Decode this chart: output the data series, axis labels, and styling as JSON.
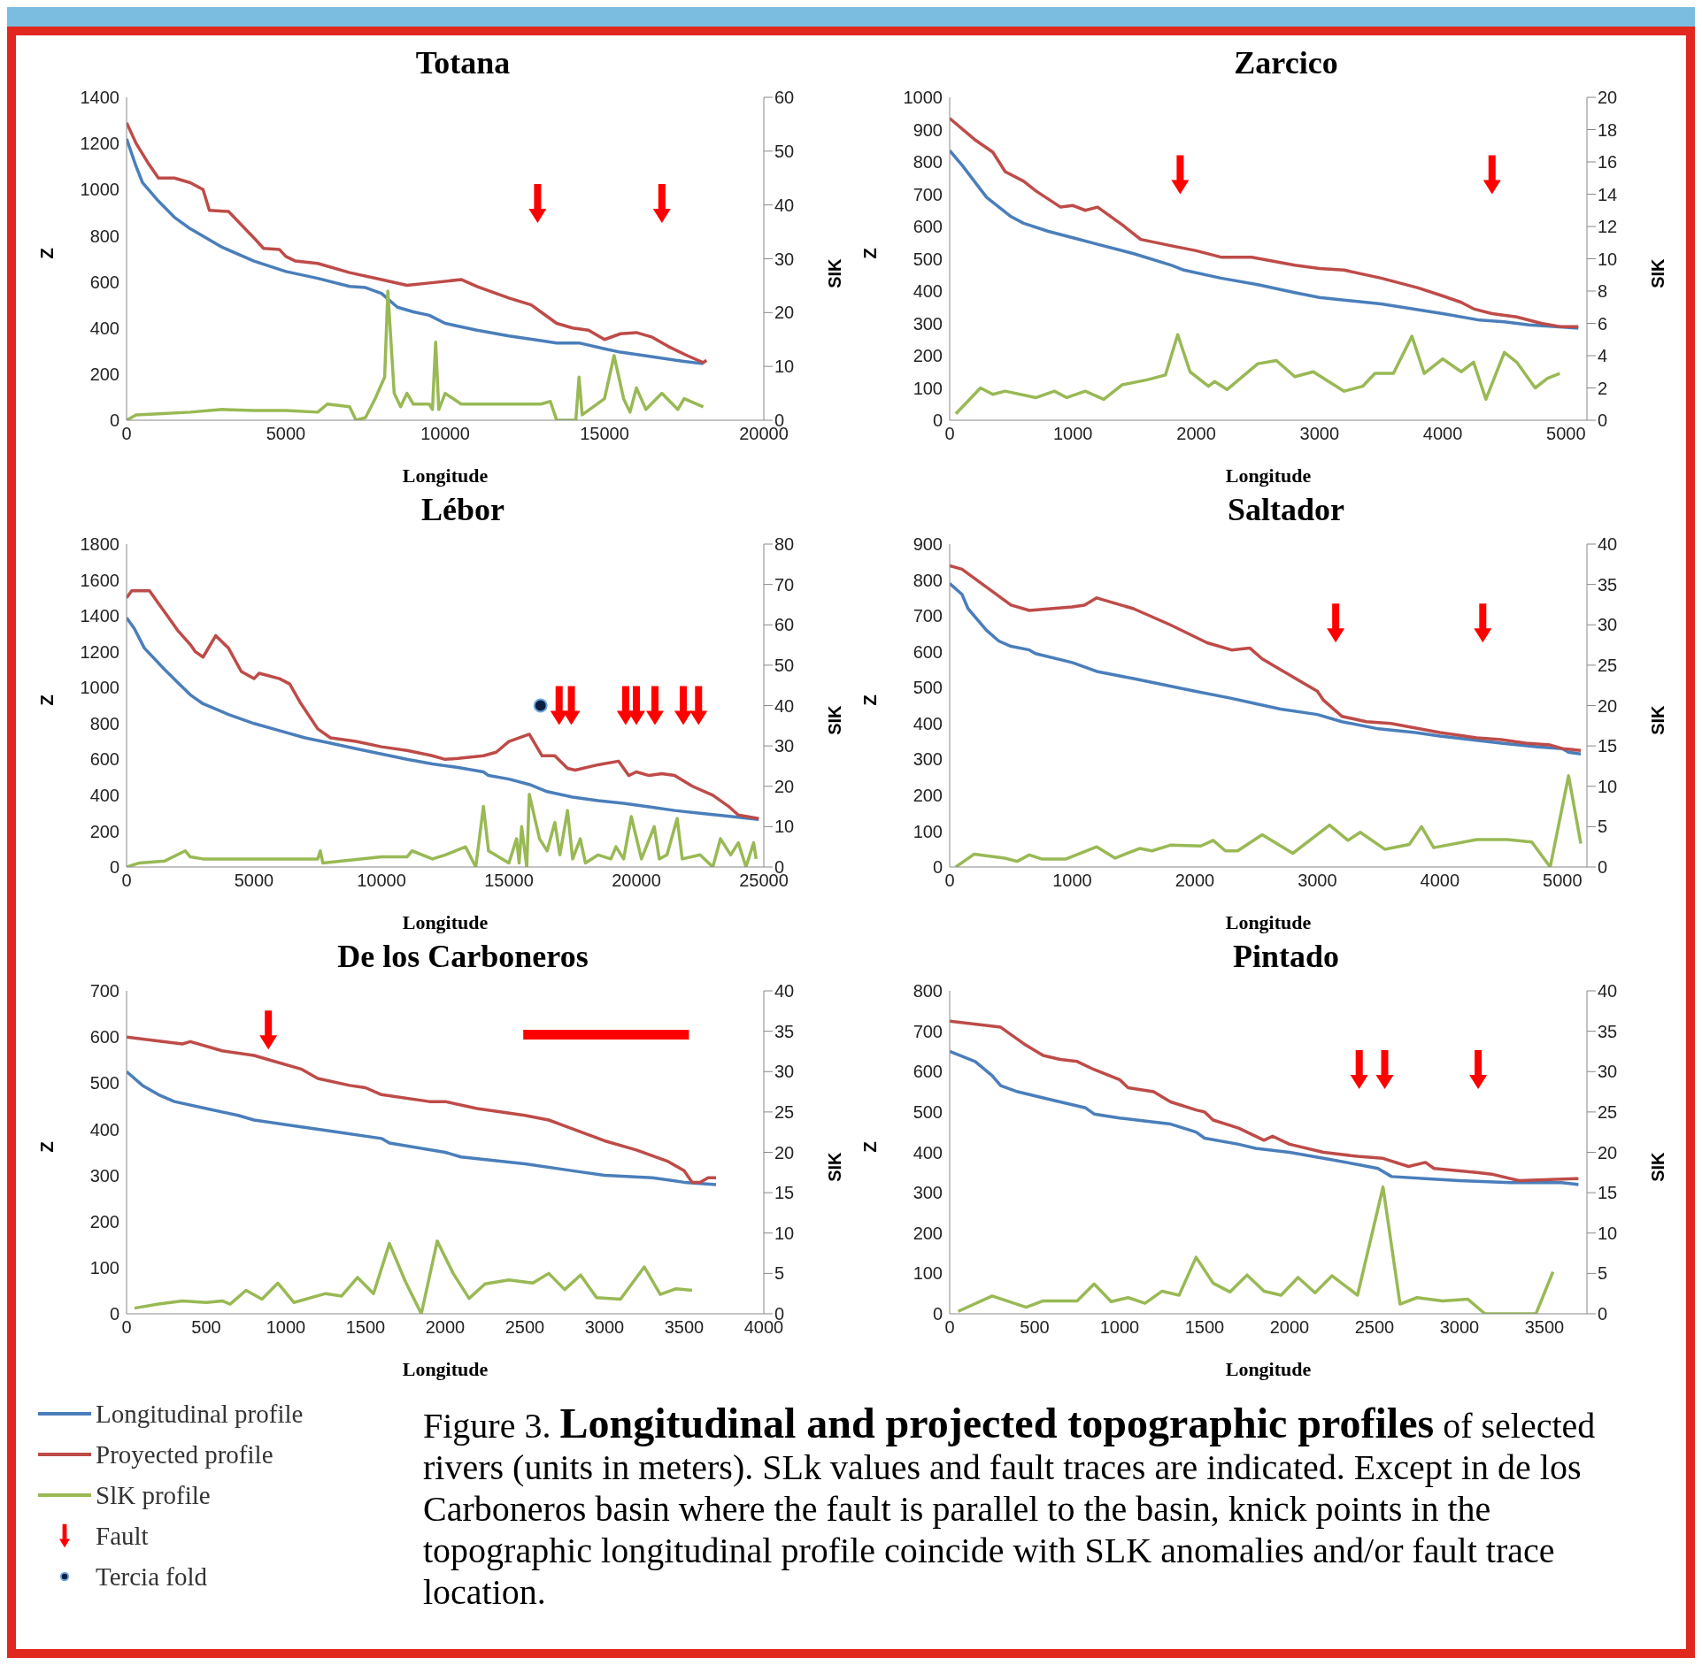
{
  "chart_data": [
    {
      "type": "line",
      "title": "Totana",
      "legend": "bottom left",
      "xlabel": "Longitude",
      "ylabel": "Z",
      "y2label": "SIK",
      "xlim": [
        0,
        20000
      ],
      "xticks": [
        0,
        5000,
        10000,
        15000,
        20000
      ],
      "ylim": [
        0,
        1400
      ],
      "yticks": [
        0,
        200,
        400,
        600,
        800,
        1000,
        1200,
        1400
      ],
      "y2lim": [
        0,
        60
      ],
      "y2ticks": [
        0,
        10,
        20,
        30,
        40,
        50,
        60
      ],
      "series": [
        {
          "name": "Longitudinal profile",
          "color": "#4a7ebb",
          "x": [
            0,
            300,
            500,
            1000,
            1500,
            2000,
            2500,
            3000,
            4000,
            5000,
            6000,
            7000,
            7500,
            8000,
            8500,
            9000,
            9500,
            10000,
            11000,
            12000,
            13000,
            13500,
            14200,
            15000,
            15500,
            16500,
            17500,
            18100
          ],
          "values": [
            1220,
            1100,
            1030,
            950,
            880,
            830,
            790,
            750,
            690,
            645,
            615,
            580,
            575,
            550,
            490,
            470,
            455,
            420,
            390,
            365,
            345,
            335,
            335,
            310,
            295,
            275,
            255,
            245
          ]
        },
        {
          "name": "Proyected profile",
          "color": "#be4b48",
          "x": [
            0,
            300,
            700,
            1000,
            1500,
            2000,
            2400,
            2600,
            3200,
            4000,
            4300,
            4800,
            5000,
            5300,
            6000,
            7000,
            8000,
            8800,
            9500,
            10500,
            11000,
            12000,
            12700,
            13000,
            13500,
            14000,
            14500,
            15000,
            15500,
            16000,
            16500,
            17000,
            17600,
            18100,
            18200
          ],
          "values": [
            1290,
            1200,
            1110,
            1050,
            1050,
            1030,
            1000,
            910,
            905,
            790,
            745,
            740,
            710,
            690,
            680,
            640,
            610,
            585,
            595,
            610,
            580,
            530,
            500,
            470,
            420,
            400,
            390,
            350,
            375,
            380,
            360,
            320,
            280,
            250,
            260
          ]
        },
        {
          "name": "SlK profile",
          "color": "#98b954",
          "axis": "y2",
          "x": [
            0,
            300,
            1000,
            2000,
            3000,
            4000,
            5000,
            6000,
            6300,
            7000,
            7200,
            7500,
            7800,
            8100,
            8200,
            8400,
            8600,
            8800,
            9000,
            9500,
            9600,
            9700,
            9800,
            10000,
            10500,
            11000,
            12000,
            13000,
            13300,
            13500,
            14100,
            14200,
            14300,
            15000,
            15300,
            15600,
            15800,
            16000,
            16300,
            16800,
            17300,
            17500,
            18100
          ],
          "values": [
            0,
            1,
            1.2,
            1.5,
            2,
            1.8,
            1.8,
            1.5,
            3,
            2.5,
            0,
            0.5,
            4,
            8,
            24,
            5,
            2.5,
            5,
            3,
            3,
            2,
            14.5,
            2,
            5,
            3,
            3,
            3,
            3,
            3.5,
            0,
            0,
            8,
            1,
            4,
            12,
            4,
            1.5,
            6,
            2,
            5,
            2,
            4,
            2.5
          ]
        },
        {
          "name": "Fault",
          "type": "scatter",
          "color": "#ff0000",
          "x": [
            12900,
            16800
          ],
          "values": [
            940,
            940
          ]
        }
      ]
    },
    {
      "type": "line",
      "title": "Zarcico",
      "xlabel": "Longitude",
      "ylabel": "Z",
      "y2label": "SIK",
      "xlim": [
        0,
        5170
      ],
      "xticks": [
        0,
        1000,
        2000,
        3000,
        4000,
        5000
      ],
      "ylim": [
        0,
        1000
      ],
      "yticks": [
        0,
        100,
        200,
        300,
        400,
        500,
        600,
        700,
        800,
        900,
        1000
      ],
      "y2lim": [
        0,
        20
      ],
      "y2ticks": [
        0,
        2,
        4,
        6,
        8,
        10,
        12,
        14,
        16,
        18,
        20
      ],
      "series": [
        {
          "name": "Longitudinal profile",
          "color": "#4a7ebb",
          "x": [
            0,
            100,
            200,
            300,
            400,
            500,
            600,
            800,
            1000,
            1200,
            1500,
            1800,
            1900,
            2200,
            2500,
            2800,
            3000,
            3500,
            4000,
            4300,
            4500,
            4700,
            5000,
            5100
          ],
          "values": [
            835,
            790,
            740,
            690,
            660,
            630,
            610,
            585,
            565,
            545,
            515,
            480,
            465,
            440,
            420,
            395,
            380,
            360,
            330,
            310,
            305,
            295,
            288,
            285
          ]
        },
        {
          "name": "Proyected profile",
          "color": "#be4b48",
          "x": [
            0,
            200,
            350,
            450,
            600,
            700,
            900,
            1000,
            1100,
            1200,
            1400,
            1550,
            1800,
            2000,
            2200,
            2450,
            2800,
            3000,
            3200,
            3500,
            3800,
            4000,
            4150,
            4250,
            4400,
            4600,
            4800,
            4950,
            5100
          ],
          "values": [
            935,
            870,
            830,
            770,
            740,
            710,
            660,
            665,
            650,
            660,
            605,
            560,
            540,
            525,
            505,
            505,
            480,
            470,
            465,
            440,
            410,
            385,
            365,
            345,
            330,
            320,
            300,
            290,
            290
          ]
        },
        {
          "name": "SlK profile",
          "color": "#98b954",
          "axis": "y2",
          "x": [
            50,
            250,
            350,
            450,
            700,
            850,
            950,
            1100,
            1250,
            1400,
            1600,
            1750,
            1850,
            1950,
            2100,
            2150,
            2250,
            2500,
            2650,
            2800,
            2950,
            3200,
            3350,
            3450,
            3600,
            3750,
            3850,
            4000,
            4150,
            4250,
            4350,
            4500,
            4600,
            4750,
            4850,
            4950
          ],
          "values": [
            0.4,
            2,
            1.6,
            1.8,
            1.4,
            1.8,
            1.4,
            1.8,
            1.3,
            2.2,
            2.5,
            2.8,
            5.3,
            3,
            2.1,
            2.4,
            1.9,
            3.5,
            3.7,
            2.7,
            3,
            1.8,
            2.1,
            2.9,
            2.9,
            5.2,
            2.9,
            3.8,
            3,
            3.6,
            1.3,
            4.2,
            3.6,
            2,
            2.6,
            2.9
          ]
        },
        {
          "name": "Fault",
          "type": "scatter",
          "color": "#ff0000",
          "x": [
            1870,
            4400
          ],
          "values": [
            760,
            760
          ]
        }
      ]
    },
    {
      "type": "line",
      "title": "Lébor",
      "xlabel": "Longitude",
      "ylabel": "Z",
      "y2label": "SIK",
      "xlim": [
        0,
        25000
      ],
      "xticks": [
        0,
        5000,
        10000,
        15000,
        20000,
        25000
      ],
      "ylim": [
        0,
        1800
      ],
      "yticks": [
        0,
        200,
        400,
        600,
        800,
        1000,
        1200,
        1400,
        1600,
        1800
      ],
      "y2lim": [
        0,
        80
      ],
      "y2ticks": [
        0,
        10,
        20,
        30,
        40,
        50,
        60,
        70,
        80
      ],
      "series": [
        {
          "name": "Longitudinal profile",
          "color": "#4a7ebb",
          "x": [
            0,
            300,
            700,
            1500,
            2000,
            2500,
            3000,
            4000,
            5000,
            6000,
            7000,
            8000,
            9000,
            10000,
            11000,
            12000,
            13000,
            14000,
            14200,
            15000,
            15800,
            16500,
            17500,
            18500,
            19500,
            20500,
            21500,
            22500,
            23500,
            24800
          ],
          "values": [
            1390,
            1330,
            1220,
            1100,
            1030,
            960,
            910,
            850,
            800,
            760,
            720,
            690,
            660,
            630,
            600,
            575,
            555,
            530,
            510,
            490,
            460,
            420,
            390,
            370,
            355,
            335,
            315,
            300,
            285,
            265
          ]
        },
        {
          "name": "Proyected profile",
          "color": "#be4b48",
          "x": [
            0,
            200,
            900,
            1200,
            1500,
            2000,
            2500,
            2700,
            3000,
            3500,
            4000,
            4500,
            5000,
            5200,
            6000,
            6400,
            6800,
            7500,
            8000,
            9000,
            10000,
            11000,
            12000,
            12500,
            13000,
            14000,
            14500,
            15000,
            15800,
            16300,
            16800,
            17300,
            17600,
            18500,
            19300,
            19700,
            20000,
            20500,
            21000,
            21500,
            22200,
            23000,
            23600,
            24000,
            24800
          ],
          "values": [
            1500,
            1540,
            1540,
            1480,
            1420,
            1320,
            1240,
            1200,
            1170,
            1290,
            1220,
            1090,
            1050,
            1080,
            1050,
            1020,
            920,
            770,
            720,
            700,
            670,
            650,
            620,
            600,
            605,
            620,
            640,
            700,
            740,
            620,
            620,
            550,
            540,
            570,
            590,
            510,
            530,
            510,
            520,
            510,
            450,
            400,
            340,
            290,
            270
          ]
        },
        {
          "name": "SlK profile",
          "color": "#98b954",
          "axis": "y2",
          "x": [
            0,
            500,
            1500,
            2300,
            2500,
            3000,
            5000,
            7500,
            7600,
            7700,
            10000,
            11000,
            11200,
            12000,
            12500,
            13300,
            13700,
            14000,
            14200,
            15000,
            15300,
            15400,
            15500,
            15700,
            15800,
            16200,
            16500,
            16800,
            17000,
            17300,
            17500,
            17800,
            18000,
            18500,
            19000,
            19200,
            19500,
            19800,
            20200,
            20700,
            20900,
            21200,
            21600,
            21800,
            22500,
            23000,
            23300,
            23700,
            24000,
            24300,
            24600,
            24700
          ],
          "values": [
            0,
            1,
            1.5,
            4,
            2.5,
            2,
            2,
            2,
            4,
            1,
            2.5,
            2.5,
            4,
            2,
            3,
            5,
            0,
            15,
            4,
            1,
            7,
            1,
            10,
            0,
            18,
            7,
            4,
            11,
            3,
            14,
            2,
            7,
            1,
            3,
            2,
            5,
            2,
            12.5,
            2,
            10,
            2,
            3,
            12,
            2,
            3,
            0,
            7,
            3,
            6,
            0,
            6,
            2
          ]
        },
        {
          "name": "Fault",
          "type": "scatter",
          "color": "#ff0000",
          "x": [
            16970,
            17450,
            19580,
            20000,
            20730,
            21840,
            22440
          ],
          "values": [
            900,
            900,
            900,
            900,
            900,
            900,
            900
          ]
        },
        {
          "name": "Tercia fold",
          "type": "scatter",
          "marker": "circle",
          "color": "#0a1f44",
          "x": [
            16240
          ],
          "values": [
            900
          ]
        }
      ]
    },
    {
      "type": "line",
      "title": "Saltador",
      "xlabel": "Longitude",
      "ylabel": "Z",
      "y2label": "SIK",
      "xlim": [
        0,
        5200
      ],
      "xticks": [
        0,
        1000,
        2000,
        3000,
        4000,
        5000
      ],
      "ylim": [
        0,
        900
      ],
      "yticks": [
        0,
        100,
        200,
        300,
        400,
        500,
        600,
        700,
        800,
        900
      ],
      "y2lim": [
        0,
        40
      ],
      "y2ticks": [
        0,
        5,
        10,
        15,
        20,
        25,
        30,
        35,
        40
      ],
      "series": [
        {
          "name": "Longitudinal profile",
          "color": "#4a7ebb",
          "x": [
            0,
            100,
            150,
            300,
            400,
            500,
            650,
            700,
            1000,
            1200,
            1500,
            2000,
            2300,
            2500,
            2700,
            3000,
            3200,
            3500,
            3800,
            4000,
            4500,
            4800,
            5000,
            5050,
            5150
          ],
          "values": [
            790,
            760,
            720,
            660,
            630,
            615,
            605,
            595,
            570,
            545,
            525,
            490,
            470,
            455,
            440,
            425,
            405,
            385,
            375,
            365,
            345,
            335,
            330,
            320,
            315
          ]
        },
        {
          "name": "Proyected profile",
          "color": "#be4b48",
          "x": [
            0,
            100,
            300,
            500,
            650,
            1000,
            1100,
            1200,
            1500,
            1800,
            2100,
            2300,
            2450,
            2550,
            2700,
            2900,
            3000,
            3050,
            3200,
            3400,
            3600,
            4000,
            4300,
            4500,
            4700,
            4900,
            5000,
            5150
          ],
          "values": [
            840,
            830,
            780,
            730,
            715,
            725,
            730,
            750,
            720,
            675,
            625,
            605,
            610,
            580,
            550,
            510,
            490,
            465,
            420,
            405,
            400,
            375,
            360,
            355,
            345,
            340,
            330,
            325
          ]
        },
        {
          "name": "SlK profile",
          "color": "#98b954",
          "axis": "y2",
          "x": [
            50,
            200,
            450,
            550,
            650,
            750,
            950,
            1200,
            1350,
            1550,
            1650,
            1800,
            2050,
            2150,
            2250,
            2350,
            2550,
            2800,
            3100,
            3250,
            3350,
            3550,
            3750,
            3850,
            3950,
            4300,
            4550,
            4750,
            4900,
            5050,
            5150
          ],
          "values": [
            0,
            1.6,
            1.1,
            0.7,
            1.5,
            1,
            1,
            2.5,
            1.1,
            2.3,
            2,
            2.7,
            2.6,
            3.3,
            2,
            2,
            4,
            1.7,
            5.2,
            3.3,
            4.3,
            2.2,
            2.8,
            5,
            2.4,
            3.4,
            3.4,
            3.1,
            0,
            11.3,
            2.9
          ]
        },
        {
          "name": "Fault",
          "type": "scatter",
          "color": "#ff0000",
          "x": [
            3150,
            4350
          ],
          "values": [
            680,
            680
          ]
        }
      ]
    },
    {
      "type": "line",
      "title": "De los Carboneros",
      "xlabel": "Longitude",
      "ylabel": "Z",
      "y2label": "SIK",
      "xlim": [
        0,
        4000
      ],
      "xticks": [
        0,
        500,
        1000,
        1500,
        2000,
        2500,
        3000,
        3500,
        4000
      ],
      "ylim": [
        0,
        700
      ],
      "yticks": [
        0,
        100,
        200,
        300,
        400,
        500,
        600,
        700
      ],
      "y2lim": [
        0,
        40
      ],
      "y2ticks": [
        0,
        5,
        10,
        15,
        20,
        25,
        30,
        35,
        40
      ],
      "series": [
        {
          "name": "Longitudinal profile",
          "color": "#4a7ebb",
          "x": [
            0,
            100,
            200,
            300,
            500,
            700,
            800,
            1000,
            1300,
            1600,
            1650,
            2000,
            2100,
            2500,
            2800,
            3000,
            3300,
            3500,
            3700
          ],
          "values": [
            525,
            495,
            475,
            460,
            445,
            430,
            420,
            410,
            395,
            380,
            370,
            350,
            340,
            325,
            310,
            300,
            295,
            285,
            280
          ]
        },
        {
          "name": "Proyected profile",
          "color": "#be4b48",
          "x": [
            0,
            350,
            400,
            600,
            800,
            900,
            1100,
            1200,
            1400,
            1500,
            1600,
            1900,
            2000,
            2200,
            2500,
            2650,
            3000,
            3200,
            3400,
            3500,
            3550,
            3600,
            3650,
            3700
          ],
          "values": [
            600,
            585,
            590,
            570,
            560,
            550,
            530,
            510,
            495,
            490,
            475,
            460,
            460,
            445,
            430,
            420,
            375,
            355,
            330,
            310,
            285,
            285,
            295,
            295
          ]
        },
        {
          "name": "SlK profile",
          "color": "#98b954",
          "axis": "y2",
          "x": [
            50,
            200,
            350,
            500,
            600,
            650,
            750,
            850,
            950,
            1050,
            1250,
            1350,
            1450,
            1550,
            1650,
            1750,
            1850,
            1950,
            2050,
            2150,
            2250,
            2400,
            2550,
            2650,
            2750,
            2850,
            2950,
            3100,
            3250,
            3350,
            3450,
            3550
          ],
          "values": [
            0.7,
            1.2,
            1.6,
            1.4,
            1.6,
            1.2,
            2.9,
            1.8,
            3.8,
            1.4,
            2.5,
            2.2,
            4.5,
            2.5,
            8.7,
            4,
            0,
            9,
            5,
            1.9,
            3.7,
            4.2,
            3.8,
            5,
            3,
            4.8,
            2,
            1.8,
            5.8,
            2.4,
            3.1,
            2.9
          ]
        },
        {
          "type": "line",
          "color": "#ff0000",
          "x": [
            2490,
            3530
          ],
          "values": [
            605,
            605
          ]
        },
        {
          "name": "Fault",
          "type": "scatter",
          "color": "#ff0000",
          "x": [
            890
          ],
          "values": [
            615
          ]
        }
      ]
    },
    {
      "type": "line",
      "title": "Pintado",
      "xlabel": "Longitude",
      "ylabel": "Z",
      "y2label": "SIK",
      "xlim": [
        0,
        3750
      ],
      "xticks": [
        0,
        500,
        1000,
        1500,
        2000,
        2500,
        3000,
        3500
      ],
      "ylim": [
        0,
        800
      ],
      "yticks": [
        0,
        100,
        200,
        300,
        400,
        500,
        600,
        700,
        800
      ],
      "y2lim": [
        0,
        40
      ],
      "y2ticks": [
        0,
        5,
        10,
        15,
        20,
        25,
        30,
        35,
        40
      ],
      "annotations": [
        "Figure 3. ",
        "Longitudinal and projected topographic profiles",
        " of selected rivers (units in meters). SLk values and fault traces are indicated. Except in de los Carboneros basin where the fault is parallel to the basin, knick points in the topographic longitudinal profile coincide with SLK anomalies and/or fault trace location."
      ],
      "series": [
        {
          "name": "Longitudinal profile",
          "color": "#4a7ebb",
          "x": [
            0,
            150,
            250,
            300,
            400,
            600,
            800,
            850,
            1000,
            1100,
            1300,
            1450,
            1500,
            1700,
            1800,
            2000,
            2200,
            2400,
            2520,
            2600,
            2800,
            3000,
            3300,
            3600,
            3700
          ],
          "values": [
            650,
            625,
            590,
            565,
            550,
            530,
            510,
            495,
            485,
            480,
            470,
            450,
            435,
            420,
            410,
            400,
            385,
            370,
            360,
            340,
            335,
            330,
            325,
            325,
            320
          ]
        },
        {
          "name": "Proyected profile",
          "color": "#be4b48",
          "x": [
            0,
            300,
            450,
            550,
            650,
            750,
            850,
            1000,
            1050,
            1200,
            1300,
            1450,
            1500,
            1550,
            1700,
            1850,
            1900,
            2000,
            2200,
            2400,
            2550,
            2700,
            2800,
            2850,
            3100,
            3200,
            3350,
            3700
          ],
          "values": [
            725,
            710,
            665,
            640,
            630,
            625,
            605,
            580,
            560,
            550,
            525,
            505,
            500,
            480,
            460,
            430,
            440,
            420,
            400,
            390,
            385,
            365,
            375,
            360,
            350,
            345,
            330,
            335
          ]
        },
        {
          "name": "SlK profile",
          "color": "#98b954",
          "axis": "y2",
          "x": [
            50,
            250,
            450,
            550,
            750,
            850,
            950,
            1050,
            1150,
            1250,
            1350,
            1450,
            1550,
            1650,
            1750,
            1850,
            1950,
            2050,
            2150,
            2250,
            2400,
            2550,
            2650,
            2750,
            2900,
            3050,
            3150,
            3350,
            3450,
            3550
          ],
          "values": [
            0.3,
            2.2,
            0.8,
            1.6,
            1.6,
            3.7,
            1.5,
            2,
            1.3,
            2.8,
            2.3,
            7,
            3.8,
            2.7,
            4.8,
            2.8,
            2.3,
            4.5,
            2.6,
            4.7,
            2.3,
            15.7,
            1.2,
            2,
            1.6,
            1.8,
            0,
            0,
            0,
            5.2
          ]
        },
        {
          "name": "Fault",
          "type": "scatter",
          "color": "#ff0000",
          "x": [
            2410,
            2560,
            3110
          ],
          "values": [
            605,
            605,
            605
          ]
        }
      ]
    }
  ]
}
